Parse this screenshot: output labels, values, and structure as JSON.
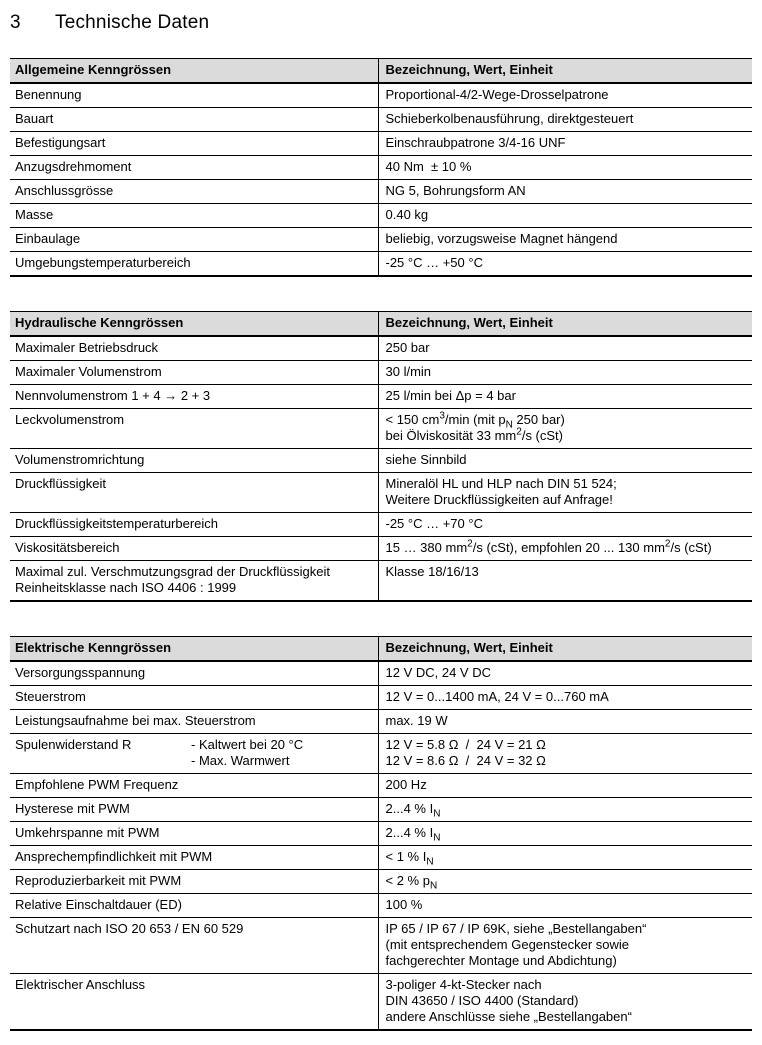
{
  "page": {
    "heading_number": "3",
    "heading_title": "Technische Daten"
  },
  "colors": {
    "header_fill": "#dbdbdb",
    "border": "#000000"
  },
  "tables": [
    {
      "title": "Allgemeine Kenngrössen",
      "header_right": "Bezeichnung, Wert, Einheit",
      "rows": [
        {
          "label": "Benennung",
          "value": "Proportional-4/2-Wege-Drosselpatrone"
        },
        {
          "label": "Bauart",
          "value": "Schieberkolbenausführung, direktgesteuert"
        },
        {
          "label": "Befestigungsart",
          "value": "Einschraubpatrone 3/4-16 UNF"
        },
        {
          "label": "Anzugsdrehmoment",
          "value": "40 Nm  ± 10 %"
        },
        {
          "label": "Anschlussgrösse",
          "value": "NG 5, Bohrungsform AN"
        },
        {
          "label": "Masse",
          "value": "0.40 kg"
        },
        {
          "label": "Einbaulage",
          "value": "beliebig, vorzugsweise Magnet hängend"
        },
        {
          "label": "Umgebungstemperaturbereich",
          "value": "-25 °C … +50 °C"
        }
      ]
    },
    {
      "title": "Hydraulische Kenngrössen",
      "header_right": "Bezeichnung, Wert, Einheit",
      "rows": [
        {
          "label": "Maximaler Betriebsdruck",
          "value": "250 bar"
        },
        {
          "label": "Maximaler Volumenstrom",
          "value": "30 l/min"
        },
        {
          "label": "Nennvolumenstrom 1 + 4 → 2 + 3",
          "value": "25 l/min bei Δp = 4 bar"
        },
        {
          "label": "Leckvolumenstrom",
          "value": "< 150 cm^3^/min (mit p~N~ 250 bar)\nbei Ölviskosität 33 mm^2^/s (cSt)"
        },
        {
          "label": "Volumenstromrichtung",
          "value": "siehe Sinnbild"
        },
        {
          "label": "Druckflüssigkeit",
          "value": "Mineralöl HL und HLP nach DIN 51 524;\nWeitere Druckflüssigkeiten auf Anfrage!"
        },
        {
          "label": "Druckflüssigkeitstemperaturbereich",
          "value": "-25 °C … +70 °C"
        },
        {
          "label": "Viskositätsbereich",
          "value": "15 … 380 mm^2^/s (cSt), empfohlen 20 ... 130 mm^2^/s (cSt)"
        },
        {
          "label": "Maximal zul. Verschmutzungsgrad der Druckflüssigkeit\nReinheitsklasse nach ISO 4406 : 1999",
          "value": "Klasse 18/16/13"
        }
      ]
    },
    {
      "title": "Elektrische Kenngrössen",
      "header_right": "Bezeichnung, Wert, Einheit",
      "rows": [
        {
          "label": "Versorgungsspannung",
          "value": "12 V DC, 24 V DC"
        },
        {
          "label": "Steuerstrom",
          "value": "12 V = 0...1400 mA, 24 V = 0...760 mA"
        },
        {
          "label": "Leistungsaufnahme bei max. Steuerstrom",
          "value": "max. 19 W"
        },
        {
          "label": "Spulenwiderstand R",
          "label_extra": [
            "- Kaltwert bei 20 °C",
            "- Max. Warmwert"
          ],
          "value": "12 V = 5.8 Ω   /   24 V = 21 Ω\n12 V = 8.6 Ω   /   24 V = 32 Ω"
        },
        {
          "label": "Empfohlene PWM Frequenz",
          "value": "200 Hz"
        },
        {
          "label": "Hysterese mit PWM",
          "value": "2...4 % I~N~"
        },
        {
          "label": "Umkehrspanne mit PWM",
          "value": "2...4 % I~N~"
        },
        {
          "label": "Ansprechempfindlichkeit mit PWM",
          "value": "< 1 % I~N~"
        },
        {
          "label": "Reproduzierbarkeit mit PWM",
          "value": "< 2 % p~N~"
        },
        {
          "label": "Relative Einschaltdauer (ED)",
          "value": "100 %"
        },
        {
          "label": "Schutzart nach ISO 20 653 / EN 60 529",
          "value": "IP 65 / IP 67 / IP 69K, siehe „Bestellangaben“\n(mit entsprechendem Gegenstecker sowie\nfachgerechter Montage und Abdichtung)"
        },
        {
          "label": "Elektrischer Anschluss",
          "value": "3-poliger 4-kt-Stecker nach\nDIN 43650 / ISO 4400 (Standard)\nandere Anschlüsse siehe „Bestellangaben“"
        }
      ]
    }
  ]
}
